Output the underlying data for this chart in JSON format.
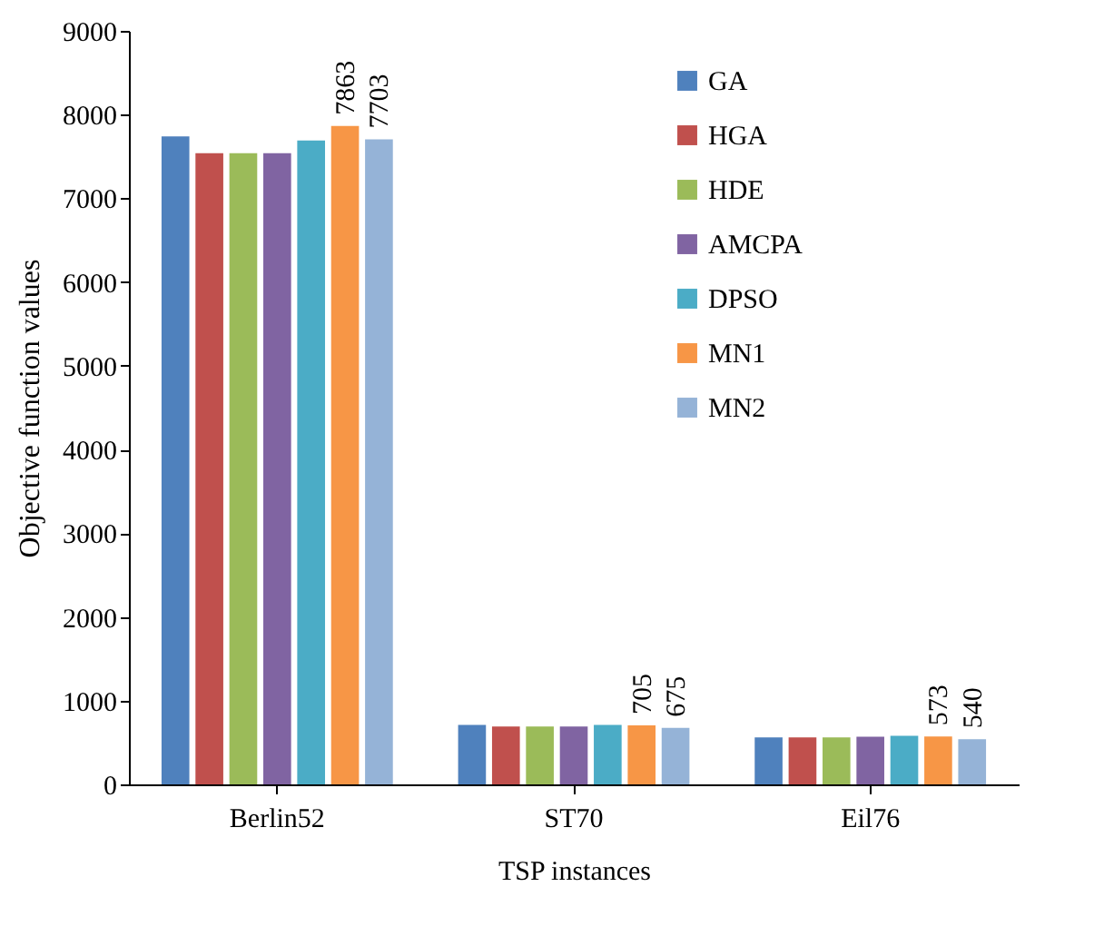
{
  "chart_data": {
    "type": "bar",
    "xlabel": "TSP instances",
    "ylabel": "Objective function values",
    "categories": [
      "Berlin52",
      "ST70",
      "Eil76"
    ],
    "series": [
      {
        "name": "GA",
        "color": "#4f81bd",
        "values": [
          7740,
          710,
          560
        ]
      },
      {
        "name": "HGA",
        "color": "#c0504d",
        "values": [
          7540,
          690,
          560
        ]
      },
      {
        "name": "HDE",
        "color": "#9bbb59",
        "values": [
          7540,
          690,
          560
        ]
      },
      {
        "name": "AMCPA",
        "color": "#8064a2",
        "values": [
          7540,
          690,
          570
        ]
      },
      {
        "name": "DPSO",
        "color": "#4bacc6",
        "values": [
          7690,
          710,
          580
        ]
      },
      {
        "name": "MN1",
        "color": "#f79646",
        "values": [
          7863,
          705,
          573
        ],
        "value_labels": [
          "7863",
          "705",
          "573"
        ]
      },
      {
        "name": "MN2",
        "color": "#95b3d7",
        "values": [
          7703,
          675,
          540
        ],
        "value_labels": [
          "7703",
          "675",
          "540"
        ]
      }
    ],
    "ylim": [
      0,
      9000
    ],
    "yticks": [
      0,
      1000,
      2000,
      3000,
      4000,
      5000,
      6000,
      7000,
      8000,
      9000
    ],
    "grid": false,
    "legend": "top right"
  }
}
